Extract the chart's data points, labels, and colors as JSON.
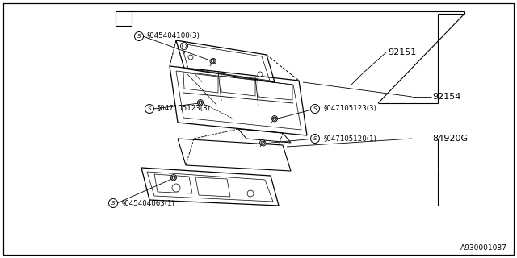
{
  "bg_color": "#ffffff",
  "line_color": "#000000",
  "fig_width": 6.4,
  "fig_height": 3.2,
  "dpi": 100,
  "labels": {
    "92151": "92151",
    "92154": "92154",
    "84920G": "84920G",
    "screw1": "§045404100(3)",
    "screw2_left": "§047105123(3)",
    "screw3_right": "§047105123(3)",
    "screw4": "§047105120(1)",
    "screw5": "§045404063(1)"
  },
  "diagram_id": "A930001087"
}
